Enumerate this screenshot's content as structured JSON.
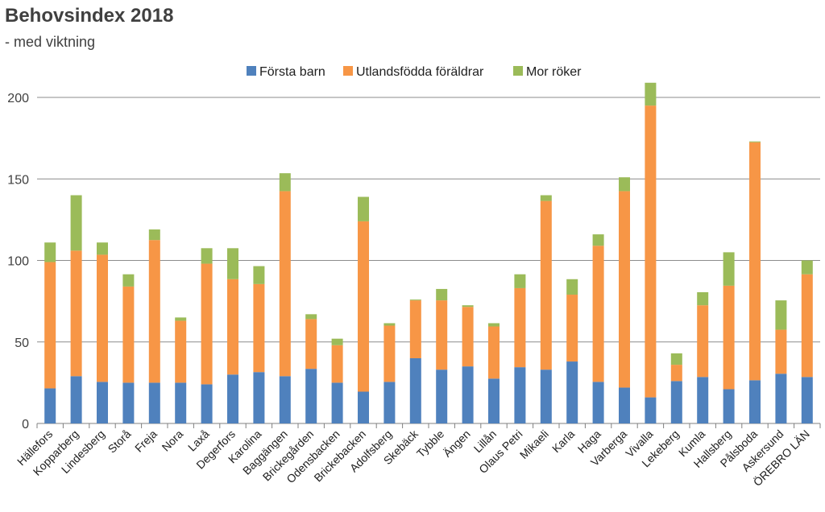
{
  "chart_data": {
    "type": "bar",
    "stacked": true,
    "title": "Behovsindex 2018",
    "subtitle": "- med viktning",
    "xlabel": "",
    "ylabel": "",
    "ylim": [
      0,
      210
    ],
    "yticks": [
      0,
      50,
      100,
      150,
      200
    ],
    "legend_position": "top-center",
    "categories": [
      "Hällefors",
      "Kopparberg",
      "Lindesberg",
      "Storå",
      "Freja",
      "Nora",
      "Laxå",
      "Degerfors",
      "Karolina",
      "Baggängen",
      "Brickegården",
      "Odensbacken",
      "Brickebacken",
      "Adolfsberg",
      "Skebäck",
      "Tybble",
      "Ängen",
      "Lillån",
      "Olaus Petri",
      "Mikaeli",
      "Karla",
      "Haga",
      "Varberga",
      "Vivalla",
      "Lekeberg",
      "Kumla",
      "Hallsberg",
      "Pålsboda",
      "Askersund",
      "ÖREBRO LÄN"
    ],
    "series": [
      {
        "name": "Första barn",
        "color": "#4F81BD",
        "values": [
          21.5,
          29,
          25.5,
          25,
          25,
          25,
          24,
          30,
          31.5,
          29,
          33.5,
          25,
          19.5,
          25.5,
          40,
          33,
          35,
          27.5,
          34.5,
          33,
          38,
          25.5,
          22,
          16,
          26,
          28.5,
          21,
          26.5,
          30.5,
          28.5
        ]
      },
      {
        "name": "Utlandsfödda föräldrar",
        "color": "#F79646",
        "values": [
          77.5,
          77,
          78,
          59,
          87.5,
          38,
          74,
          58.5,
          54,
          113.5,
          30.5,
          23,
          104.5,
          34.5,
          35.5,
          42.5,
          36.5,
          32,
          48.5,
          103.5,
          41,
          83.5,
          120.5,
          179,
          10,
          44,
          63.5,
          146,
          27,
          63
        ]
      },
      {
        "name": "Mor röker",
        "color": "#9BBB59",
        "values": [
          12,
          34,
          7.5,
          7.5,
          6.5,
          2,
          9.5,
          19,
          11,
          11,
          3,
          4,
          15,
          1.5,
          0.5,
          7,
          1,
          2,
          8.5,
          3.5,
          9.5,
          7,
          8.5,
          14,
          7,
          8,
          20.5,
          0.5,
          18,
          8.5
        ]
      }
    ]
  }
}
